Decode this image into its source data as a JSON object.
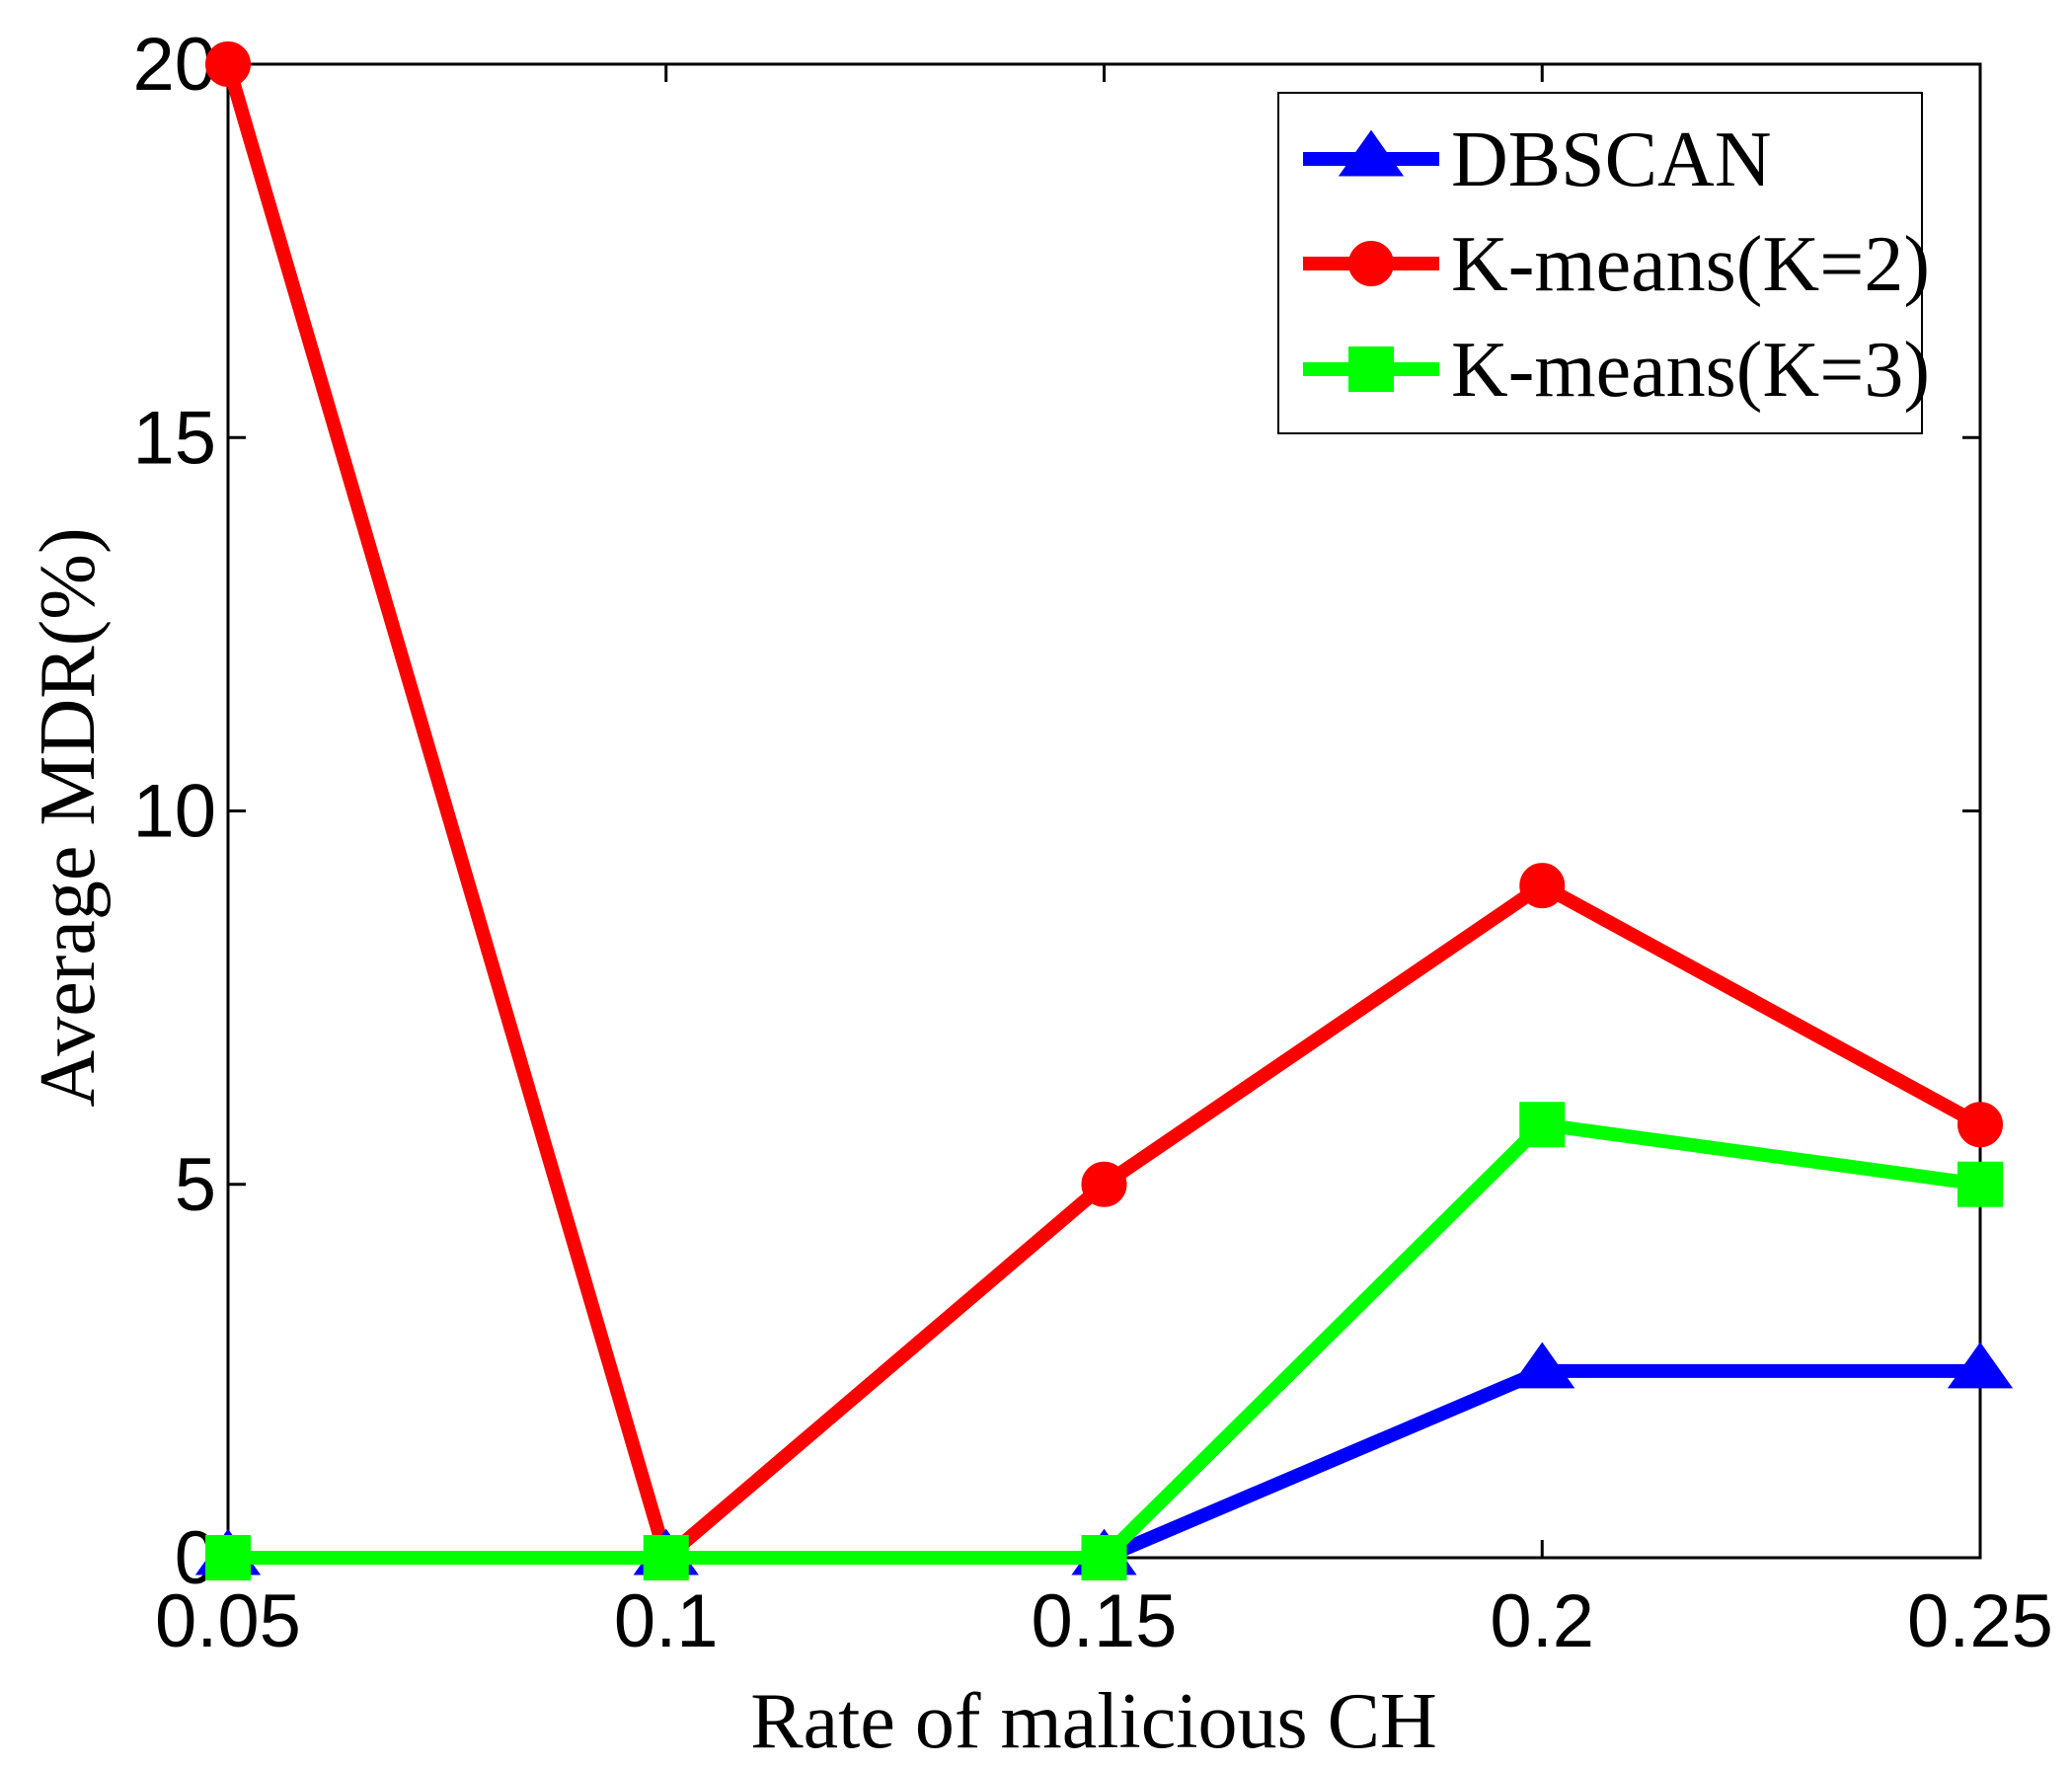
{
  "chart_data": {
    "type": "line",
    "title": "",
    "xlabel": "Rate of malicious CH",
    "ylabel": "Average MDR(%)",
    "x": [
      0.05,
      0.1,
      0.15,
      0.2,
      0.25
    ],
    "x_tick_labels": [
      "0.05",
      "0.1",
      "0.15",
      "0.2",
      "0.25"
    ],
    "y_ticks": [
      0,
      5,
      10,
      15,
      20
    ],
    "y_tick_labels": [
      "0",
      "5",
      "10",
      "15",
      "20"
    ],
    "xlim": [
      0.05,
      0.25
    ],
    "ylim": [
      0,
      20
    ],
    "grid": false,
    "legend_position": "top-right",
    "series": [
      {
        "name": "DBSCAN",
        "color": "#0000ff",
        "marker": "triangle",
        "values": [
          0,
          0,
          0,
          2.5,
          2.5
        ]
      },
      {
        "name": "K-means(K=2)",
        "color": "#ff0000",
        "marker": "circle",
        "values": [
          20,
          0,
          5,
          9,
          5.8
        ]
      },
      {
        "name": "K-means(K=3)",
        "color": "#00ff00",
        "marker": "square",
        "values": [
          0,
          0,
          0,
          5.8,
          5
        ]
      }
    ]
  }
}
